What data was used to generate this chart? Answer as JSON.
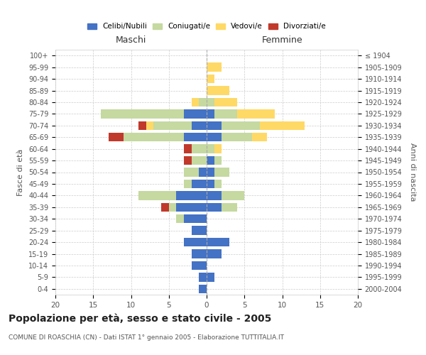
{
  "age_groups": [
    "100+",
    "95-99",
    "90-94",
    "85-89",
    "80-84",
    "75-79",
    "70-74",
    "65-69",
    "60-64",
    "55-59",
    "50-54",
    "45-49",
    "40-44",
    "35-39",
    "30-34",
    "25-29",
    "20-24",
    "15-19",
    "10-14",
    "5-9",
    "0-4"
  ],
  "birth_years": [
    "≤ 1904",
    "1905-1909",
    "1910-1914",
    "1915-1919",
    "1920-1924",
    "1925-1929",
    "1930-1934",
    "1935-1939",
    "1940-1944",
    "1945-1949",
    "1950-1954",
    "1955-1959",
    "1960-1964",
    "1965-1969",
    "1970-1974",
    "1975-1979",
    "1980-1984",
    "1985-1989",
    "1990-1994",
    "1995-1999",
    "2000-2004"
  ],
  "maschi_celibi": [
    0,
    0,
    0,
    0,
    0,
    3,
    2,
    3,
    0,
    0,
    1,
    2,
    4,
    4,
    3,
    2,
    3,
    2,
    2,
    1,
    1
  ],
  "maschi_coniugati": [
    0,
    0,
    0,
    0,
    1,
    11,
    5,
    8,
    2,
    2,
    2,
    1,
    5,
    1,
    1,
    0,
    0,
    0,
    0,
    0,
    0
  ],
  "maschi_vedovi": [
    0,
    0,
    0,
    0,
    1,
    0,
    1,
    0,
    0,
    0,
    0,
    0,
    0,
    0,
    0,
    0,
    0,
    0,
    0,
    0,
    0
  ],
  "maschi_divorziati": [
    0,
    0,
    0,
    0,
    0,
    0,
    1,
    2,
    1,
    1,
    0,
    0,
    0,
    1,
    0,
    0,
    0,
    0,
    0,
    0,
    0
  ],
  "femmine_celibi": [
    0,
    0,
    0,
    0,
    0,
    1,
    2,
    2,
    0,
    1,
    1,
    1,
    2,
    2,
    0,
    0,
    3,
    2,
    0,
    1,
    0
  ],
  "femmine_coniugati": [
    0,
    0,
    0,
    0,
    1,
    3,
    5,
    4,
    1,
    1,
    2,
    1,
    3,
    2,
    0,
    0,
    0,
    0,
    0,
    0,
    0
  ],
  "femmine_vedovi": [
    0,
    2,
    1,
    3,
    3,
    5,
    6,
    2,
    1,
    0,
    0,
    0,
    0,
    0,
    0,
    0,
    0,
    0,
    0,
    0,
    0
  ],
  "femmine_divorziati": [
    0,
    0,
    0,
    0,
    0,
    0,
    0,
    0,
    0,
    0,
    0,
    0,
    0,
    0,
    0,
    0,
    0,
    0,
    0,
    0,
    0
  ],
  "color_celibi": "#4472C4",
  "color_coniugati": "#C5D9A0",
  "color_vedovi": "#FFD966",
  "color_divorziati": "#C0392B",
  "title": "Popolazione per età, sesso e stato civile - 2005",
  "subtitle": "COMUNE DI ROASCHIA (CN) - Dati ISTAT 1° gennaio 2005 - Elaborazione TUTTITALIA.IT",
  "ylabel_left": "Fasce di età",
  "ylabel_right": "Anni di nascita",
  "xlabel_maschi": "Maschi",
  "xlabel_femmine": "Femmine",
  "xlim": 20,
  "background_color": "#ffffff",
  "grid_color": "#cccccc"
}
